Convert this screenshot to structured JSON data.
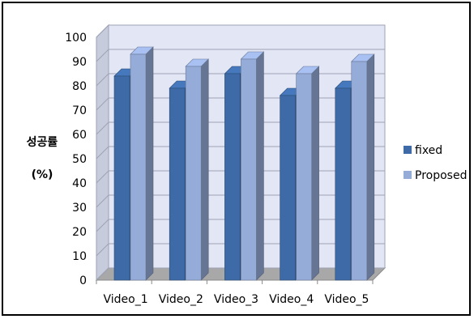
{
  "chart_data": {
    "type": "bar",
    "title": "",
    "ylabel": [
      "성공률",
      "(%)"
    ],
    "xlabel": "",
    "categories": [
      "Video_1",
      "Video_2",
      "Video_3",
      "Video_4",
      "Video_5"
    ],
    "series": [
      {
        "name": "fixed",
        "values": [
          84,
          79,
          85,
          76,
          79
        ],
        "color": "#3E6BA8"
      },
      {
        "name": "Proposed",
        "values": [
          93,
          88,
          91,
          85,
          90
        ],
        "color": "#96ACD8"
      }
    ],
    "ylim": [
      0,
      100
    ],
    "yticks": [
      0,
      10,
      20,
      30,
      40,
      50,
      60,
      70,
      80,
      90,
      100
    ],
    "grid": true,
    "style": "3d-clustered-column",
    "legend": "right"
  }
}
